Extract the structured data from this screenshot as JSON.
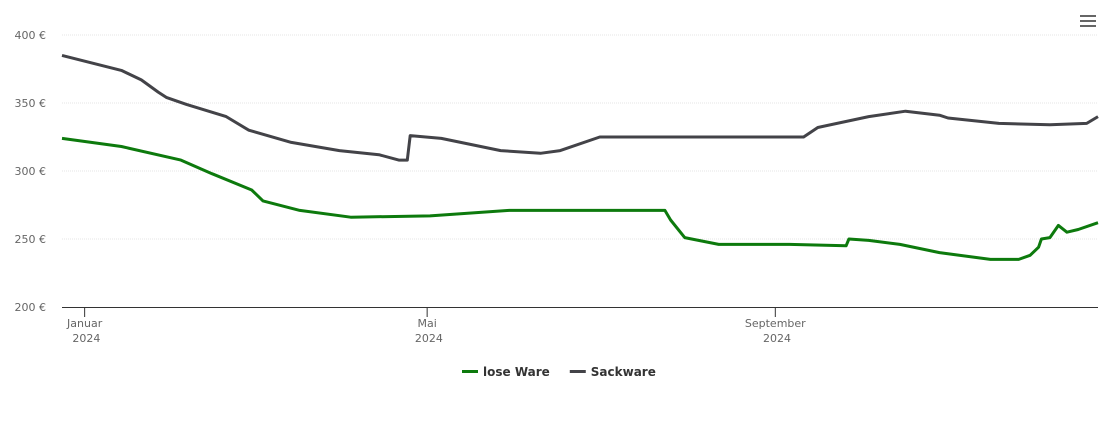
{
  "chart_data": {
    "type": "line",
    "xlim": [
      -8,
      358
    ],
    "xticks": [
      {
        "value": 0,
        "label": "Januar 2024"
      },
      {
        "value": 121,
        "label": "Mai 2024"
      },
      {
        "value": 244,
        "label": "September 2024"
      }
    ],
    "ylim": [
      200,
      400
    ],
    "yticks": [
      {
        "value": 200,
        "label": "200 €"
      },
      {
        "value": 250,
        "label": "250 €"
      },
      {
        "value": 300,
        "label": "300 €"
      },
      {
        "value": 350,
        "label": "350 €"
      },
      {
        "value": 400,
        "label": "400 €"
      }
    ],
    "grid": true,
    "legend": "bottom",
    "series": [
      {
        "name": "lose Ware",
        "color": "#0d7a0d",
        "x": [
          -8,
          13,
          34,
          45,
          59,
          63,
          76,
          94,
          122,
          150,
          205,
          207,
          212,
          224,
          242,
          249,
          269,
          270,
          277,
          288,
          302,
          320,
          330,
          334,
          337,
          338,
          341,
          344,
          347,
          351,
          358
        ],
        "values": [
          324,
          318,
          308,
          298,
          286,
          278,
          271,
          266,
          267,
          271,
          271,
          264,
          251,
          246,
          246,
          246,
          245,
          250,
          249,
          246,
          240,
          235,
          235,
          238,
          244,
          250,
          251,
          260,
          255,
          257,
          262
        ]
      },
      {
        "name": "Sackware",
        "color": "#434348",
        "x": [
          -8,
          13,
          20,
          26,
          29,
          36,
          50,
          58,
          73,
          90,
          104,
          111,
          114,
          115,
          126,
          147,
          161,
          168,
          182,
          254,
          259,
          277,
          290,
          302,
          305,
          323,
          341,
          354,
          358
        ],
        "values": [
          385,
          374,
          367,
          358,
          354,
          349,
          340,
          330,
          321,
          315,
          312,
          308,
          308,
          326,
          324,
          315,
          313,
          315,
          325,
          325,
          332,
          340,
          344,
          341,
          339,
          335,
          334,
          335,
          340
        ]
      }
    ]
  }
}
